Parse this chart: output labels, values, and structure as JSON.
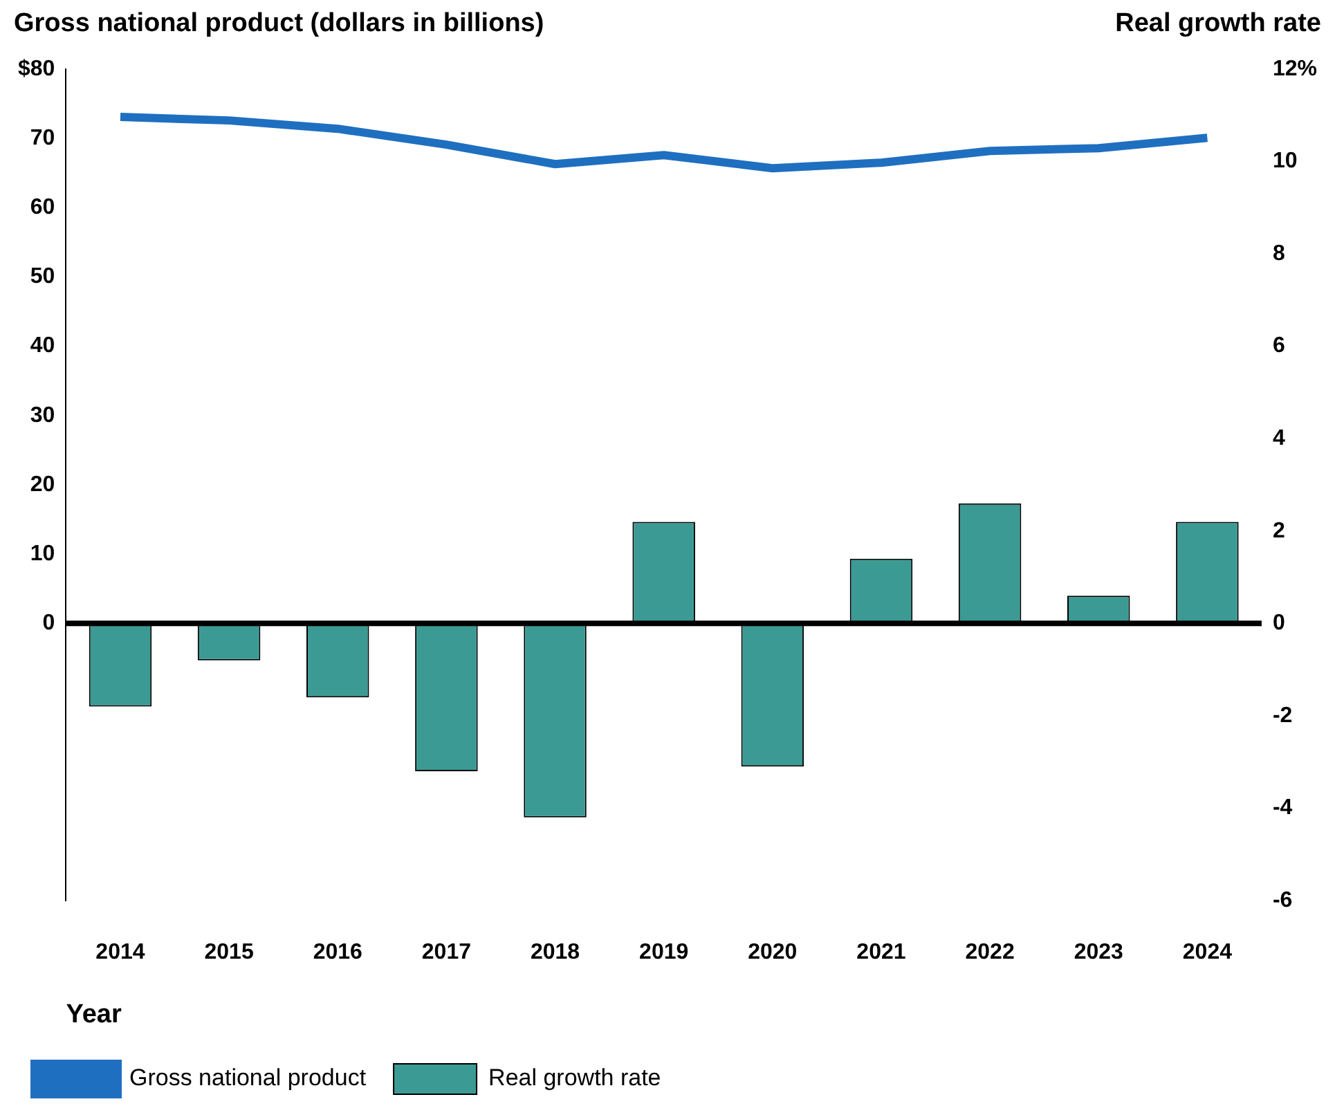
{
  "chart_data": {
    "type": "bar",
    "ylabel": "Gross national product (dollars in billions)",
    "y2label": "Real growth rate",
    "xlabel": "Year",
    "categories": [
      "2014",
      "2015",
      "2016",
      "2017",
      "2018",
      "2019",
      "2020",
      "2021",
      "2022",
      "2023",
      "2024"
    ],
    "series": [
      {
        "name": "Gross national product",
        "type": "line",
        "color": "#1f6fc0",
        "values": [
          73.1,
          72.6,
          71.4,
          69.1,
          66.3,
          67.6,
          65.7,
          66.5,
          68.2,
          68.6,
          70.1
        ]
      },
      {
        "name": "Real growth rate",
        "axis": "y2",
        "color": "#3c9a94",
        "values": [
          -1.8,
          -0.8,
          -1.6,
          -3.2,
          -4.2,
          2.2,
          -3.1,
          1.4,
          2.6,
          0.6,
          2.2
        ]
      }
    ],
    "ylim": [
      -40,
      80
    ],
    "yticks": [
      0,
      10,
      20,
      30,
      40,
      50,
      60,
      70,
      {
        "value": 80,
        "label": "$80"
      }
    ],
    "y2lim": [
      -6,
      12
    ],
    "y2ticks": [
      -6,
      -4,
      -2,
      0,
      2,
      4,
      6,
      8,
      10,
      {
        "value": 12,
        "label": "12%"
      }
    ],
    "ref_lines": [
      {
        "axis": "y",
        "value": 0,
        "color": "#000000"
      }
    ],
    "grid": false,
    "legend": "bottom"
  }
}
